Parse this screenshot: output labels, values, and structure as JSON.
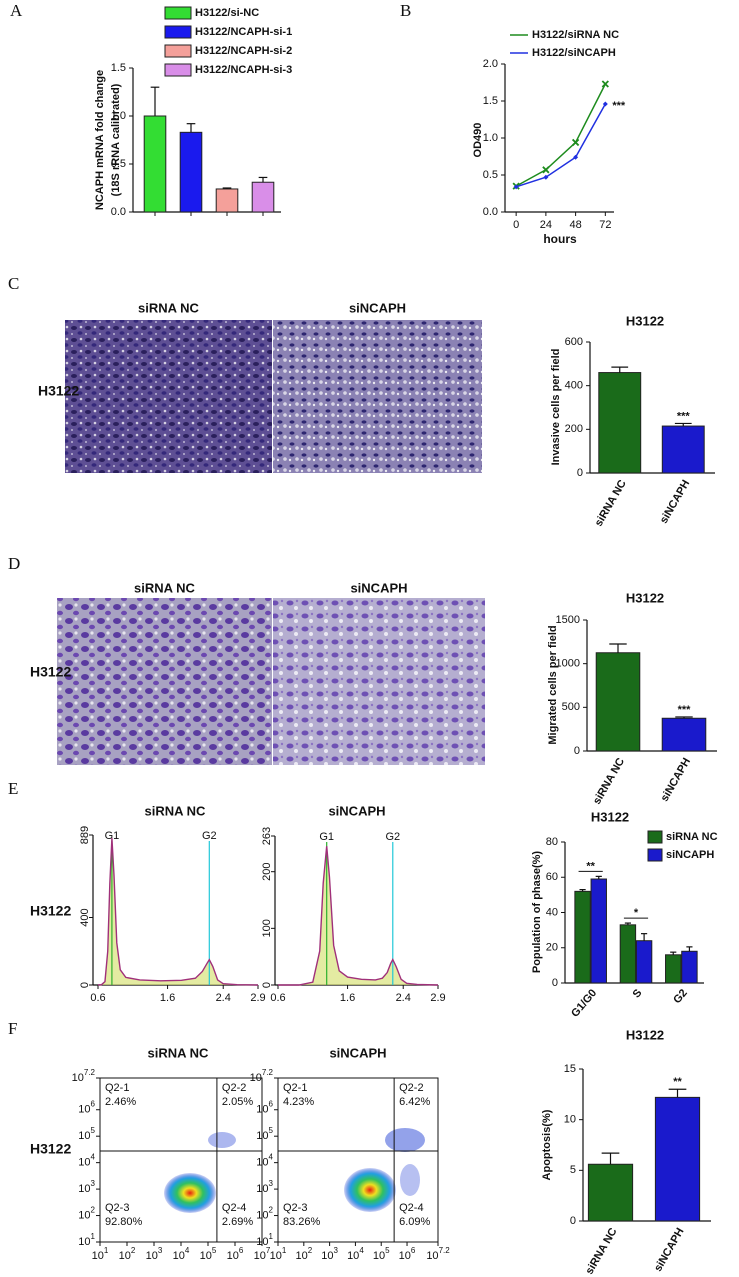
{
  "chart_data": [
    {
      "type": "bar",
      "panel": "A",
      "ylabel": [
        "NCAPH mRNA fold change",
        "(18S rRNA calibrated)"
      ],
      "series": [
        {
          "name": "H3122/si-NC",
          "color": "#33dd33",
          "values": [
            1.0
          ],
          "errors": [
            0.3
          ]
        },
        {
          "name": "H3122/NCAPH-si-1",
          "color": "#1a1aee",
          "values": [
            0.83
          ],
          "errors": [
            0.09
          ]
        },
        {
          "name": "H3122/NCAPH-si-2",
          "color": "#f4a09a",
          "values": [
            0.24
          ],
          "errors": [
            0.01
          ]
        },
        {
          "name": "H3122/NCAPH-si-3",
          "color": "#d98ee8",
          "values": [
            0.31
          ],
          "errors": [
            0.05
          ]
        }
      ],
      "ylim": [
        0,
        1.5
      ],
      "yticks": [
        {
          "value": 0,
          "label": "0.0"
        },
        0.5,
        {
          "value": 1,
          "label": "1.0"
        },
        1.5
      ]
    },
    {
      "type": "line",
      "panel": "B",
      "xlabel": "hours",
      "ylabel": "OD490",
      "x": [
        0,
        24,
        48,
        72
      ],
      "series": [
        {
          "name": "H3122/siRNA NC",
          "color": "#1e8c1e",
          "marker": "x",
          "values": [
            0.35,
            0.57,
            0.94,
            1.73
          ]
        },
        {
          "name": "H3122/siNCAPH",
          "color": "#2030e0",
          "marker": "diamond",
          "values": [
            0.34,
            0.47,
            0.74,
            1.46
          ]
        }
      ],
      "annotation": "***",
      "xlim": [
        -9,
        79
      ],
      "xticks": [
        0,
        24,
        48,
        72
      ],
      "ylim": [
        0,
        2
      ],
      "yticks": [
        {
          "value": 0,
          "label": "0.0"
        },
        0.5,
        {
          "value": 1,
          "label": "1.0"
        },
        1.5,
        {
          "value": 2,
          "label": "2.0"
        }
      ]
    },
    {
      "type": "bar",
      "panel": "C",
      "image_titles": [
        "siRNA NC",
        "siNCAPH"
      ],
      "row_label": "H3122",
      "title": "H3122",
      "ylabel": "Invasive cells per field",
      "categories": [
        "siRNA NC",
        "siNCAPH"
      ],
      "values": [
        460,
        215
      ],
      "errors": [
        25,
        12
      ],
      "colors": [
        "#1a6b1a",
        "#1a1acc"
      ],
      "significance": [
        null,
        "***"
      ],
      "ylim": [
        0,
        600
      ],
      "yticks": [
        0,
        200,
        400,
        600
      ]
    },
    {
      "type": "bar",
      "panel": "D",
      "image_titles": [
        "siRNA NC",
        "siNCAPH"
      ],
      "row_label": "H3122",
      "title": "H3122",
      "ylabel": "Migrated cells per field",
      "categories": [
        "siRNA NC",
        "siNCAPH"
      ],
      "values": [
        1125,
        375
      ],
      "errors": [
        100,
        15
      ],
      "colors": [
        "#1a6b1a",
        "#1a1acc"
      ],
      "significance": [
        null,
        "***"
      ],
      "ylim": [
        0,
        1500
      ],
      "yticks": [
        0,
        500,
        1000,
        1500
      ]
    },
    {
      "type": "flow-histogram",
      "panel": "E",
      "row_label": "H3122",
      "title": "siRNA NC",
      "x": [
        0.6,
        0.65,
        0.7,
        0.74,
        0.77,
        0.8,
        0.83,
        0.87,
        0.92,
        1.0,
        1.2,
        1.5,
        1.8,
        2.0,
        2.1,
        2.17,
        2.2,
        2.25,
        2.32,
        2.4,
        2.6,
        2.9
      ],
      "values": [
        0,
        2,
        20,
        200,
        600,
        870,
        650,
        250,
        90,
        45,
        30,
        25,
        28,
        40,
        80,
        130,
        150,
        110,
        30,
        8,
        2,
        0
      ],
      "color": "#a0307a",
      "peaks": [
        {
          "label": "G1",
          "x": 0.8,
          "color": "#2cb02c"
        },
        {
          "label": "G2",
          "x": 2.2,
          "color": "#22c8d8"
        }
      ],
      "xlim": [
        0.6,
        2.9
      ],
      "xticks": [
        0.6,
        1.6,
        2.4,
        2.9
      ],
      "ylim": [
        0,
        889
      ],
      "yticks": [
        0,
        400,
        889
      ]
    },
    {
      "type": "flow-histogram",
      "title": "siNCAPH",
      "x": [
        0.6,
        0.9,
        1.1,
        1.2,
        1.25,
        1.3,
        1.34,
        1.4,
        1.48,
        1.6,
        1.8,
        2.0,
        2.1,
        2.17,
        2.22,
        2.25,
        2.3,
        2.37,
        2.45,
        2.6,
        2.9
      ],
      "values": [
        0,
        0,
        5,
        60,
        180,
        245,
        190,
        70,
        25,
        14,
        10,
        9,
        12,
        22,
        38,
        45,
        32,
        10,
        3,
        1,
        0
      ],
      "color": "#a0307a",
      "peaks": [
        {
          "label": "G1",
          "x": 1.3,
          "color": "#2cb02c"
        },
        {
          "label": "G2",
          "x": 2.25,
          "color": "#22c8d8"
        }
      ],
      "xlim": [
        0.6,
        2.9
      ],
      "xticks": [
        0.6,
        1.6,
        2.4,
        2.9
      ],
      "ylim": [
        0,
        263
      ],
      "yticks": [
        0,
        100,
        200,
        263
      ]
    },
    {
      "type": "bar",
      "title": "H3122",
      "ylabel": "Population of phase(%)",
      "categories": [
        "G1/G0",
        "S",
        "G2"
      ],
      "series": [
        {
          "name": "siRNA NC",
          "color": "#1a6b1a",
          "values": [
            52,
            33,
            16
          ],
          "errors": [
            1,
            1,
            1.5
          ]
        },
        {
          "name": "siNCAPH",
          "color": "#1a1acc",
          "values": [
            59,
            24,
            18
          ],
          "errors": [
            1.5,
            4,
            2.5
          ]
        }
      ],
      "significance": [
        "**",
        "*",
        null
      ],
      "ylim": [
        0,
        80
      ],
      "yticks": [
        0,
        20,
        40,
        60,
        80
      ]
    },
    {
      "type": "flow-scatter",
      "panel": "F",
      "row_label": "H3122",
      "title": "siRNA NC",
      "tick_base": "10",
      "xlim": [
        1,
        7
      ],
      "xticks": [
        1,
        2,
        3,
        4,
        5,
        6,
        7
      ],
      "ylim": [
        1,
        7.2
      ],
      "yticks": [
        1,
        2,
        3,
        4,
        5,
        6,
        7.2
      ],
      "gate_x": 5.33,
      "gate_y": 4.44,
      "quadrant_names": [
        "Q2-1",
        "Q2-2",
        "Q2-3",
        "Q2-4"
      ],
      "values": [
        2.46,
        2.05,
        92.8,
        2.69
      ],
      "value_labels": [
        "2.46%",
        "2.05%",
        "92.80%",
        "2.69%"
      ]
    },
    {
      "type": "flow-scatter",
      "title": "siNCAPH",
      "tick_base": "10",
      "xlim": [
        1,
        7.2
      ],
      "xticks": [
        1,
        2,
        3,
        4,
        5,
        6,
        7.2
      ],
      "ylim": [
        1,
        7.2
      ],
      "yticks": [
        1,
        2,
        3,
        4,
        5,
        6,
        7.2
      ],
      "gate_x": 5.5,
      "gate_y": 4.44,
      "quadrant_names": [
        "Q2-1",
        "Q2-2",
        "Q2-3",
        "Q2-4"
      ],
      "values": [
        4.23,
        6.42,
        83.26,
        6.09
      ],
      "value_labels": [
        "4.23%",
        "6.42%",
        "83.26%",
        "6.09%"
      ]
    },
    {
      "type": "bar",
      "title": "H3122",
      "ylabel": "Apoptosis(%)",
      "categories": [
        "siRNA NC",
        "siNCAPH"
      ],
      "values": [
        5.6,
        12.2
      ],
      "errors": [
        1.1,
        0.8
      ],
      "colors": [
        "#1a6b1a",
        "#1a1acc"
      ],
      "significance": [
        null,
        "**"
      ],
      "ylim": [
        0,
        15
      ],
      "yticks": [
        0,
        5,
        10,
        15
      ]
    }
  ]
}
